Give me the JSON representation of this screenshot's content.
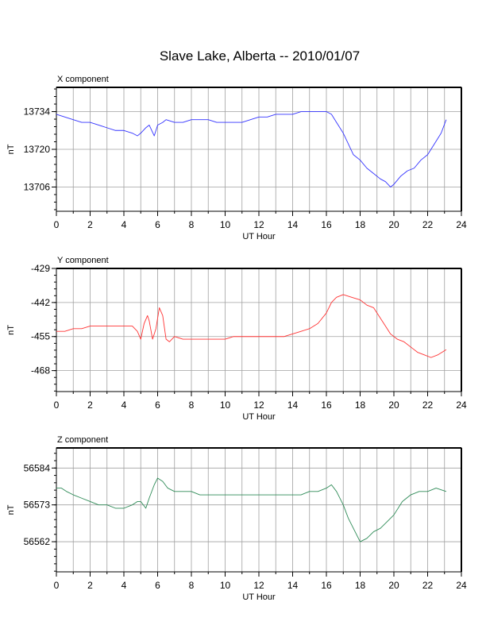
{
  "figure": {
    "title": "Slave Lake, Alberta -- 2010/01/07"
  },
  "chart_data": [
    {
      "type": "line",
      "title": "X component",
      "xlabel": "UT Hour",
      "ylabel": "nT",
      "xlim": [
        0,
        24
      ],
      "ylim": [
        13697,
        13743
      ],
      "x_ticks": [
        0,
        2,
        4,
        6,
        8,
        10,
        12,
        14,
        16,
        18,
        20,
        22,
        24
      ],
      "y_ticks": [
        13706,
        13720,
        13734
      ],
      "grid": true,
      "color": "#3333ff",
      "x": [
        0,
        0.5,
        1,
        1.5,
        2,
        2.5,
        3,
        3.5,
        4,
        4.5,
        4.8,
        5,
        5.3,
        5.5,
        5.8,
        6,
        6.3,
        6.5,
        7,
        7.5,
        8,
        8.5,
        9,
        9.5,
        10,
        10.5,
        11,
        11.5,
        12,
        12.5,
        13,
        13.5,
        14,
        14.5,
        15,
        15.5,
        16,
        16.3,
        16.6,
        17,
        17.3,
        17.6,
        18,
        18.4,
        18.8,
        19.2,
        19.5,
        19.8,
        20,
        20.4,
        20.8,
        21.2,
        21.6,
        22,
        22.4,
        22.8,
        23.1
      ],
      "y": [
        13733,
        13732,
        13731,
        13730,
        13730,
        13729,
        13728,
        13727,
        13727,
        13726,
        13725,
        13726,
        13728,
        13729,
        13725,
        13729,
        13730,
        13731,
        13730,
        13730,
        13731,
        13731,
        13731,
        13730,
        13730,
        13730,
        13730,
        13731,
        13732,
        13732,
        13733,
        13733,
        13733,
        13734,
        13734,
        13734,
        13734,
        13733,
        13730,
        13726,
        13722,
        13718,
        13716,
        13713,
        13711,
        13709,
        13708,
        13706,
        13707,
        13710,
        13712,
        13713,
        13716,
        13718,
        13722,
        13726,
        13731
      ]
    },
    {
      "type": "line",
      "title": "Y component",
      "xlabel": "UT Hour",
      "ylabel": "nT",
      "xlim": [
        0,
        24
      ],
      "ylim": [
        -476,
        -429
      ],
      "x_ticks": [
        0,
        2,
        4,
        6,
        8,
        10,
        12,
        14,
        16,
        18,
        20,
        22,
        24
      ],
      "y_ticks": [
        -429,
        -442,
        -455,
        -468
      ],
      "grid": true,
      "color": "#ff3333",
      "x": [
        0,
        0.5,
        1,
        1.5,
        2,
        2.5,
        3,
        3.5,
        4,
        4.5,
        4.8,
        5,
        5.2,
        5.4,
        5.5,
        5.7,
        5.9,
        6,
        6.1,
        6.3,
        6.5,
        6.7,
        7,
        7.5,
        8,
        8.5,
        9,
        9.5,
        10,
        10.5,
        11,
        11.5,
        12,
        12.5,
        13,
        13.5,
        14,
        14.5,
        15,
        15.5,
        16,
        16.3,
        16.6,
        17,
        17.5,
        18,
        18.4,
        18.8,
        19.2,
        19.5,
        19.8,
        20.2,
        20.6,
        21,
        21.4,
        21.8,
        22.2,
        22.6,
        23.1
      ],
      "y": [
        -453,
        -453,
        -452,
        -452,
        -451,
        -451,
        -451,
        -451,
        -451,
        -451,
        -453,
        -456,
        -450,
        -447,
        -449,
        -456,
        -452,
        -448,
        -444,
        -447,
        -456,
        -457,
        -455,
        -456,
        -456,
        -456,
        -456,
        -456,
        -456,
        -455,
        -455,
        -455,
        -455,
        -455,
        -455,
        -455,
        -454,
        -453,
        -452,
        -450,
        -446,
        -442,
        -440,
        -439,
        -440,
        -441,
        -443,
        -444,
        -448,
        -451,
        -454,
        -456,
        -457,
        -459,
        -461,
        -462,
        -463,
        -462,
        -460
      ]
    },
    {
      "type": "line",
      "title": "Z component",
      "xlabel": "UT Hour",
      "ylabel": "nT",
      "xlim": [
        0,
        24
      ],
      "ylim": [
        56553,
        56590
      ],
      "x_ticks": [
        0,
        2,
        4,
        6,
        8,
        10,
        12,
        14,
        16,
        18,
        20,
        22,
        24
      ],
      "y_ticks": [
        56562,
        56573,
        56584
      ],
      "grid": true,
      "color": "#2e8b57",
      "x": [
        0,
        0.3,
        0.6,
        1,
        1.5,
        2,
        2.5,
        3,
        3.5,
        4,
        4.5,
        4.8,
        5,
        5.3,
        5.5,
        5.8,
        6,
        6.3,
        6.6,
        7,
        7.5,
        8,
        8.5,
        9,
        9.5,
        10,
        10.5,
        11,
        11.5,
        12,
        12.5,
        13,
        13.5,
        14,
        14.5,
        15,
        15.5,
        16,
        16.3,
        16.6,
        17,
        17.3,
        17.6,
        18,
        18.4,
        18.8,
        19.2,
        19.6,
        20,
        20.5,
        21,
        21.5,
        22,
        22.5,
        23.1
      ],
      "y": [
        56578,
        56578,
        56577,
        56576,
        56575,
        56574,
        56573,
        56573,
        56572,
        56572,
        56573,
        56574,
        56574,
        56572,
        56575,
        56579,
        56581,
        56580,
        56578,
        56577,
        56577,
        56577,
        56576,
        56576,
        56576,
        56576,
        56576,
        56576,
        56576,
        56576,
        56576,
        56576,
        56576,
        56576,
        56576,
        56577,
        56577,
        56578,
        56579,
        56577,
        56573,
        56569,
        56566,
        56562,
        56563,
        56565,
        56566,
        56568,
        56570,
        56574,
        56576,
        56577,
        56577,
        56578,
        56577
      ]
    }
  ]
}
